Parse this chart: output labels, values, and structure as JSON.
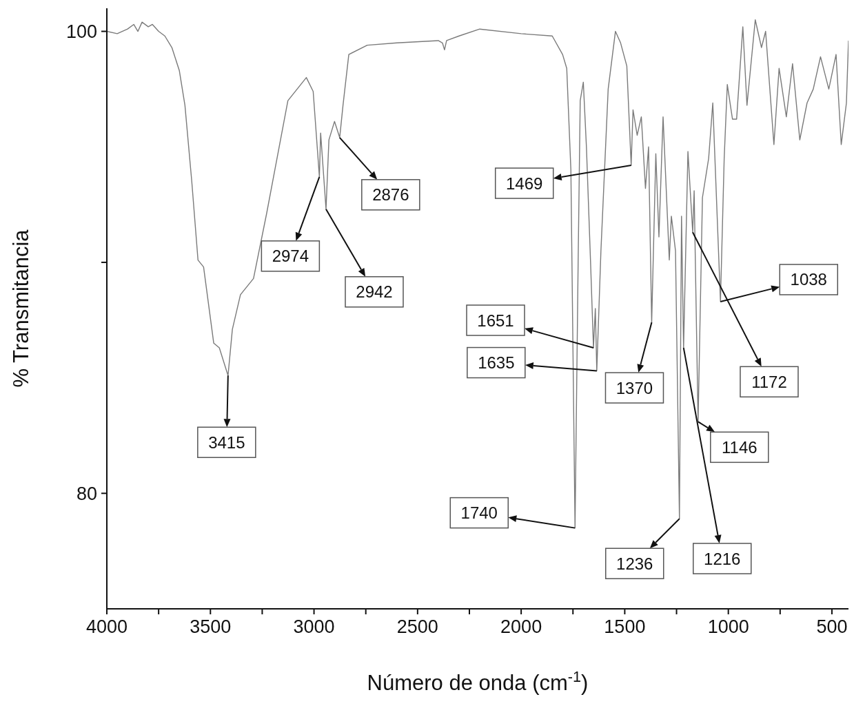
{
  "chart_data": {
    "type": "line",
    "xlabel": "Número de onda (cm$^{-1}$)",
    "ylabel": "% Transmitancia",
    "xlim": [
      4000,
      420
    ],
    "ylim": [
      75,
      101
    ],
    "xticks": [
      4000,
      {
        "value": 3750,
        "label": null
      },
      3500,
      {
        "value": 3250,
        "label": null
      },
      3000,
      {
        "value": 2750,
        "label": null
      },
      2500,
      {
        "value": 2250,
        "label": null
      },
      2000,
      {
        "value": 1750,
        "label": null
      },
      1500,
      {
        "value": 1250,
        "label": null
      },
      1000,
      {
        "value": 750,
        "label": null
      },
      500
    ],
    "yticks": [
      80,
      {
        "value": 90,
        "label": null
      },
      100
    ],
    "grid": false,
    "legend": false,
    "marker": "none",
    "line_style": "solid",
    "series": [
      {
        "color": "#7a7a7a",
        "x": [
          4000,
          3950,
          3900,
          3870,
          3850,
          3830,
          3800,
          3780,
          3750,
          3720,
          3686,
          3650,
          3623,
          3590,
          3560,
          3533,
          3484,
          3457,
          3415,
          3394,
          3355,
          3292,
          3229,
          3126,
          3037,
          3004,
          2974,
          2968,
          2942,
          2928,
          2901,
          2876,
          2860,
          2832,
          2743,
          2600,
          2400,
          2380,
          2370,
          2360,
          2300,
          2200,
          2000,
          1850,
          1800,
          1780,
          1760,
          1740,
          1725,
          1715,
          1700,
          1685,
          1665,
          1651,
          1642,
          1635,
          1615,
          1580,
          1545,
          1520,
          1490,
          1469,
          1460,
          1440,
          1420,
          1400,
          1385,
          1370,
          1350,
          1335,
          1315,
          1285,
          1275,
          1255,
          1236,
          1226,
          1216,
          1195,
          1172,
          1165,
          1146,
          1125,
          1095,
          1075,
          1038,
          1020,
          1005,
          980,
          960,
          930,
          910,
          870,
          840,
          820,
          780,
          755,
          720,
          690,
          655,
          620,
          590,
          555,
          515,
          480,
          455,
          430,
          420
        ],
        "values": [
          100,
          99.9,
          100.1,
          100.3,
          100,
          100.4,
          100.2,
          100.3,
          100,
          99.8,
          99.3,
          98.3,
          96.8,
          93.5,
          90.1,
          89.8,
          86.5,
          86.3,
          85.1,
          87.1,
          88.6,
          89.3,
          92.1,
          97,
          98,
          97.4,
          93.7,
          95.6,
          92.3,
          95.3,
          96.1,
          95.4,
          96.8,
          99,
          99.4,
          99.5,
          99.6,
          99.5,
          99.2,
          99.6,
          99.8,
          100.1,
          99.9,
          99.8,
          99,
          98.4,
          94,
          78.5,
          90,
          97,
          97.8,
          95,
          90,
          86.3,
          88,
          85.3,
          90.5,
          97.5,
          100,
          99.5,
          98.5,
          94.2,
          96.6,
          95.5,
          96.3,
          93.2,
          95,
          87.4,
          94.7,
          91.1,
          96.3,
          90.1,
          92,
          90.5,
          78.9,
          92,
          86.3,
          94.8,
          91.3,
          93.1,
          83.1,
          92.8,
          94.5,
          96.9,
          88.3,
          94.5,
          97.7,
          96.2,
          96.2,
          100.2,
          96.8,
          100.5,
          99.3,
          100,
          95.1,
          98.4,
          96.3,
          98.6,
          95.3,
          96.9,
          97.5,
          98.9,
          97.5,
          99,
          95.1,
          96.9,
          99.6
        ]
      }
    ],
    "annotations": [
      {
        "text": "3415",
        "x": 3415,
        "y": 85.1
      },
      {
        "text": "2974",
        "x": 2974,
        "y": 93.7
      },
      {
        "text": "2942",
        "x": 2942,
        "y": 92.3
      },
      {
        "text": "2876",
        "x": 2876,
        "y": 95.4
      },
      {
        "text": "1740",
        "x": 1740,
        "y": 78.5
      },
      {
        "text": "1651",
        "x": 1651,
        "y": 86.3
      },
      {
        "text": "1635",
        "x": 1635,
        "y": 85.3
      },
      {
        "text": "1469",
        "x": 1469,
        "y": 94.2
      },
      {
        "text": "1370",
        "x": 1370,
        "y": 87.4
      },
      {
        "text": "1236",
        "x": 1236,
        "y": 78.9
      },
      {
        "text": "1216",
        "x": 1216,
        "y": 86.3
      },
      {
        "text": "1172",
        "x": 1172,
        "y": 91.3
      },
      {
        "text": "1146",
        "x": 1146,
        "y": 83.1
      },
      {
        "text": "1038",
        "x": 1038,
        "y": 88.3
      }
    ]
  }
}
